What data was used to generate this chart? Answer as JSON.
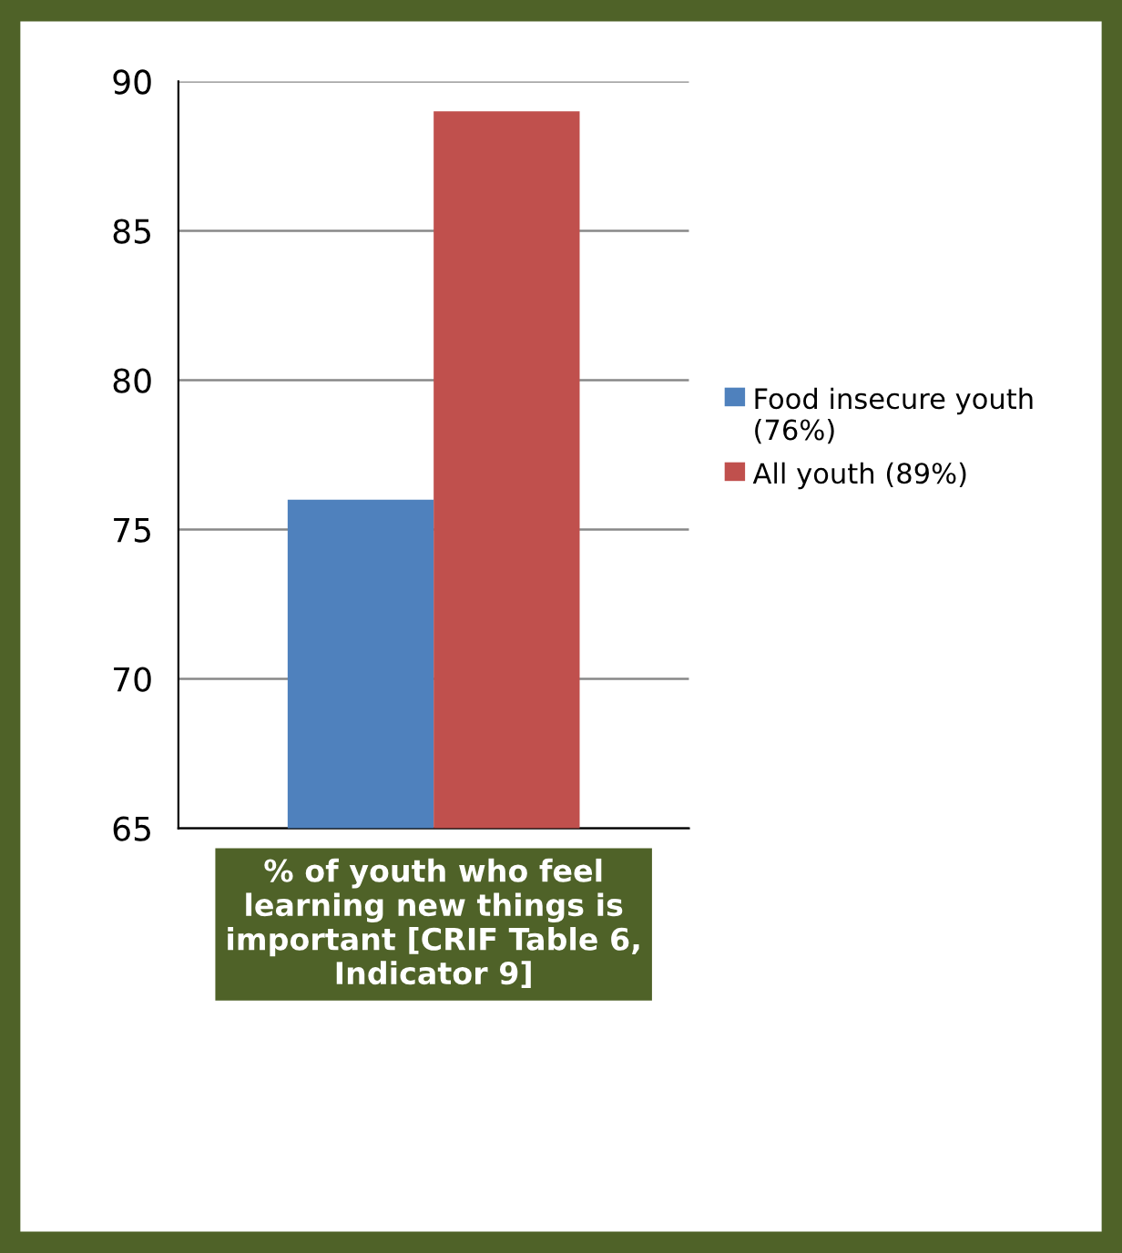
{
  "chart_data": {
    "type": "bar",
    "categories": [
      "% of youth who feel learning new things is important [CRIF Table 6, Indicator 9]"
    ],
    "series": [
      {
        "name": "Food insecure youth (76%)",
        "color": "#4f81bd",
        "values": [
          76
        ]
      },
      {
        "name": "All youth (89%)",
        "color": "#c0504d",
        "values": [
          89
        ]
      }
    ],
    "ylim": [
      65,
      90
    ],
    "yticks": [
      65,
      70,
      75,
      80,
      85,
      90
    ],
    "grid": "y",
    "legend": "right"
  }
}
